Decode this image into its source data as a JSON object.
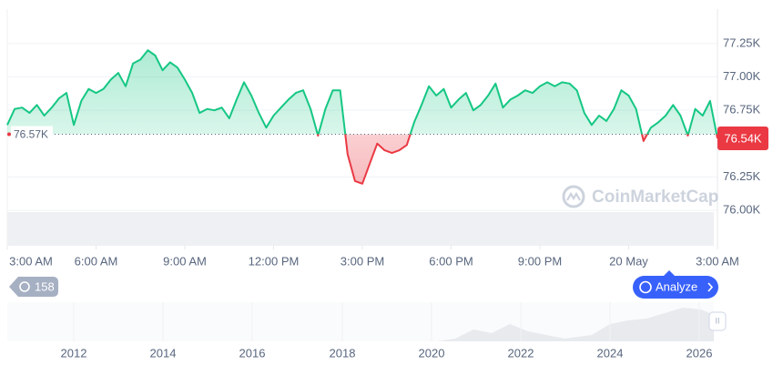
{
  "chart_data": {
    "type": "line",
    "x": [
      0,
      0.25,
      0.5,
      0.75,
      1,
      1.25,
      1.5,
      1.75,
      2,
      2.25,
      2.5,
      2.75,
      3,
      3.25,
      3.5,
      3.75,
      4,
      4.25,
      4.5,
      4.75,
      5,
      5.25,
      5.5,
      5.75,
      6,
      6.25,
      6.5,
      6.75,
      7,
      7.25,
      7.5,
      7.75,
      8,
      8.25,
      8.5,
      8.75,
      9,
      9.25,
      9.5,
      9.75,
      10,
      10.25,
      10.5,
      10.75,
      11,
      11.25,
      11.5,
      11.75,
      12,
      12.25,
      12.5,
      12.75,
      13,
      13.25,
      13.5,
      13.75,
      14,
      14.25,
      14.5,
      14.75,
      15,
      15.25,
      15.5,
      15.75,
      16,
      16.25,
      16.5,
      16.75,
      17,
      17.25,
      17.5,
      17.75,
      18,
      18.25,
      18.5,
      18.75,
      19,
      19.25,
      19.5,
      19.75,
      20,
      20.25,
      20.5,
      20.75,
      21,
      21.25,
      21.5,
      21.75,
      22,
      22.25,
      22.5,
      22.75,
      23,
      23.25,
      23.5,
      23.75,
      24
    ],
    "values": [
      76640,
      76760,
      76770,
      76730,
      76790,
      76710,
      76770,
      76840,
      76880,
      76640,
      76820,
      76910,
      76880,
      76910,
      76980,
      77030,
      76930,
      77100,
      77130,
      77200,
      77160,
      77050,
      77110,
      77070,
      76980,
      76880,
      76730,
      76760,
      76750,
      76770,
      76690,
      76830,
      76960,
      76860,
      76730,
      76620,
      76710,
      76770,
      76830,
      76880,
      76900,
      76760,
      76560,
      76760,
      76900,
      76900,
      76420,
      76220,
      76200,
      76350,
      76500,
      76450,
      76430,
      76450,
      76490,
      76660,
      76790,
      76930,
      76860,
      76910,
      76770,
      76830,
      76880,
      76750,
      76790,
      76860,
      76950,
      76770,
      76830,
      76860,
      76900,
      76880,
      76930,
      76960,
      76930,
      76960,
      76950,
      76900,
      76730,
      76640,
      76710,
      76670,
      76760,
      76900,
      76860,
      76760,
      76520,
      76620,
      76660,
      76710,
      76790,
      76710,
      76560,
      76760,
      76710,
      76820,
      76540
    ],
    "color_up": "#16c784",
    "color_down": "#ea3943",
    "baseline": {
      "value": 76570,
      "label": "76.57K"
    },
    "price": {
      "value": 76540,
      "label": "76.54K"
    },
    "xlim": [
      0,
      24
    ],
    "xticks": [
      {
        "value": 0,
        "label": "3:00 AM"
      },
      {
        "value": 3,
        "label": "6:00 AM"
      },
      {
        "value": 6,
        "label": "9:00 AM"
      },
      {
        "value": 9,
        "label": "12:00 PM"
      },
      {
        "value": 12,
        "label": "3:00 PM"
      },
      {
        "value": 15,
        "label": "6:00 PM"
      },
      {
        "value": 18,
        "label": "9:00 PM"
      },
      {
        "value": 21,
        "label": "20 May"
      },
      {
        "value": 24,
        "label": "3:00 AM"
      }
    ],
    "ylim": [
      75735,
      77508
    ],
    "yticks": [
      {
        "value": 76000,
        "label": "76.00K"
      },
      {
        "value": 76250,
        "label": "76.25K"
      },
      {
        "value": 76750,
        "label": "76.75K"
      },
      {
        "value": 77000,
        "label": "77.00K"
      },
      {
        "value": 77250,
        "label": "77.25K"
      }
    ],
    "grid": true,
    "watermark": "CoinMarketCap",
    "badge": "158",
    "button": "Analyze",
    "navigator_years": [
      2012,
      2014,
      2016,
      2018,
      2020,
      2022,
      2024,
      2026
    ],
    "navigator_handle": "II"
  }
}
